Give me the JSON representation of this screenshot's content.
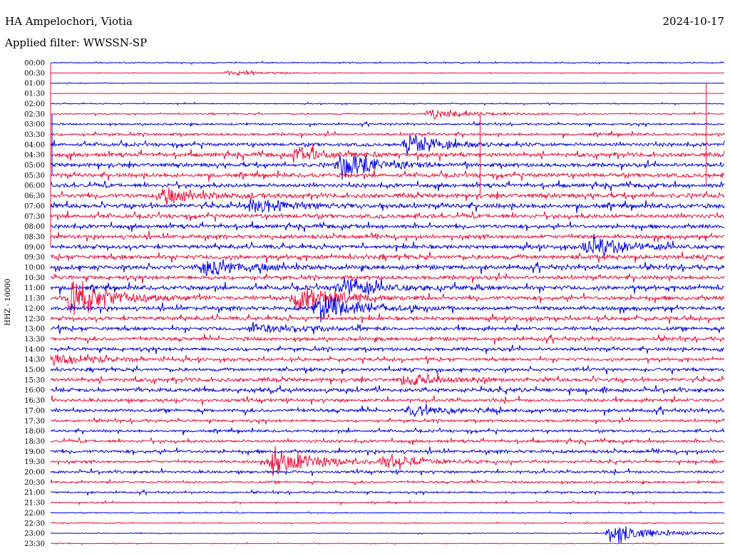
{
  "header": {
    "station": "HA Ampelochori, Viotia",
    "date": "2024-10-17",
    "filter_text": "Applied filter: WWSSN-SP"
  },
  "chart_data": {
    "type": "line",
    "title": "HA Ampelochori, Viotia",
    "date": "2024-10-17",
    "filter": "WWSSN-SP",
    "ylabel": "HHZ - 10000",
    "row_labels": [
      "00:00",
      "00:30",
      "01:00",
      "01:30",
      "02:00",
      "02:30",
      "03:00",
      "03:30",
      "04:00",
      "04:30",
      "05:00",
      "05:30",
      "06:00",
      "06:30",
      "07:00",
      "07:30",
      "08:00",
      "08:30",
      "09:00",
      "09:30",
      "10:00",
      "10:30",
      "11:00",
      "11:30",
      "12:00",
      "12:30",
      "13:00",
      "13:30",
      "14:00",
      "14:30",
      "15:00",
      "15:30",
      "16:00",
      "16:30",
      "17:00",
      "17:30",
      "18:00",
      "18:30",
      "19:00",
      "19:30",
      "20:00",
      "20:30",
      "21:00",
      "21:30",
      "22:00",
      "22:30",
      "23:00",
      "23:30"
    ],
    "series_colors": [
      "#0000e0",
      "#e8103c"
    ],
    "row_noise": [
      0.08,
      0.04,
      0.04,
      0.03,
      0.07,
      0.1,
      0.14,
      0.2,
      0.26,
      0.32,
      0.3,
      0.32,
      0.3,
      0.34,
      0.36,
      0.32,
      0.3,
      0.3,
      0.3,
      0.34,
      0.34,
      0.3,
      0.34,
      0.32,
      0.3,
      0.3,
      0.28,
      0.28,
      0.26,
      0.24,
      0.24,
      0.3,
      0.3,
      0.26,
      0.26,
      0.2,
      0.2,
      0.22,
      0.24,
      0.2,
      0.2,
      0.16,
      0.14,
      0.1,
      0.07,
      0.06,
      0.05,
      0.05
    ],
    "events": [
      {
        "time": "00:38",
        "amp": 0.5
      },
      {
        "time": "02:47",
        "amp": 0.9
      },
      {
        "time": "04:16",
        "amp": 1.6
      },
      {
        "time": "04:41",
        "amp": 1.2
      },
      {
        "time": "05:13",
        "amp": 2.4
      },
      {
        "time": "06:35",
        "amp": 1.2
      },
      {
        "time": "07:09",
        "amp": 1.3
      },
      {
        "time": "09:24",
        "amp": 1.5
      },
      {
        "time": "10:07",
        "amp": 1.6
      },
      {
        "time": "11:13",
        "amp": 1.6
      },
      {
        "time": "11:31",
        "amp": 3.2
      },
      {
        "time": "11:41",
        "amp": 2.4
      },
      {
        "time": "12:12",
        "amp": 2.2
      },
      {
        "time": "13:09",
        "amp": 1.1
      },
      {
        "time": "14:30",
        "amp": 1.0
      },
      {
        "time": "15:46",
        "amp": 0.9
      },
      {
        "time": "17:16",
        "amp": 1.0
      },
      {
        "time": "19:40",
        "amp": 2.6
      },
      {
        "time": "19:45",
        "amp": 1.2
      },
      {
        "time": "23:25",
        "amp": 1.9
      }
    ],
    "spikes": [
      {
        "time": "04:30",
        "amp": 18
      },
      {
        "time": "04:00",
        "amp": 6
      },
      {
        "time": "04:49",
        "amp": 8
      },
      {
        "time": "03:59",
        "amp": 10
      }
    ],
    "grid": false
  }
}
